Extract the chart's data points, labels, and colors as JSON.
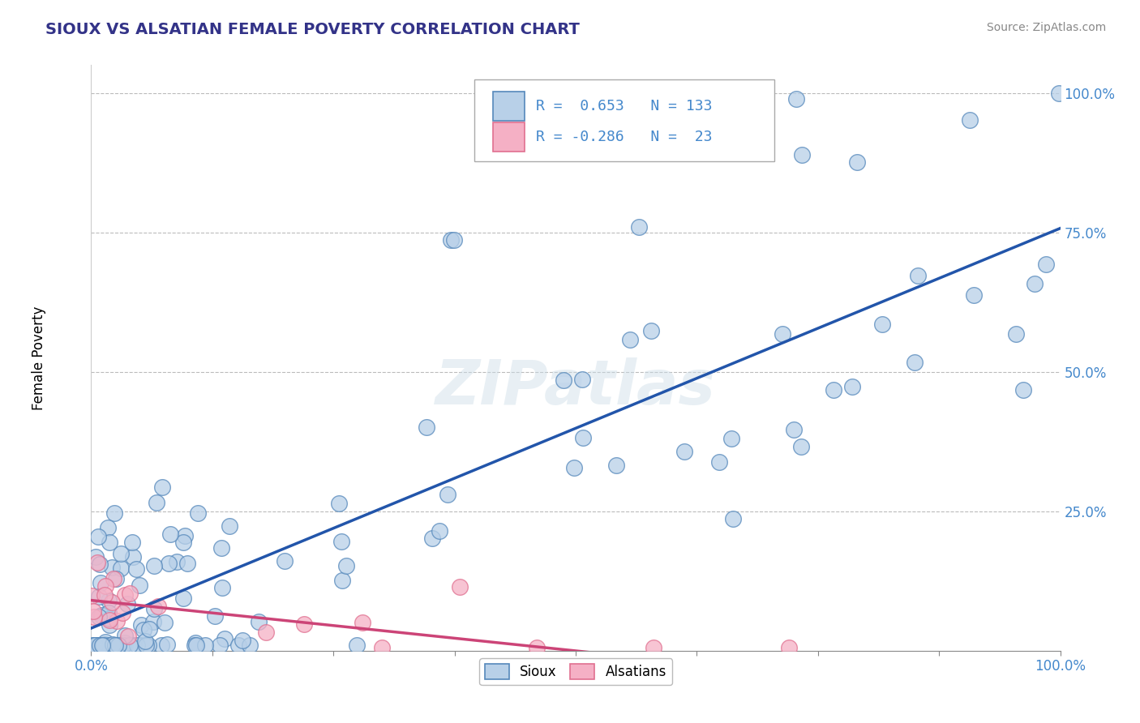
{
  "title": "SIOUX VS ALSATIAN FEMALE POVERTY CORRELATION CHART",
  "source": "Source: ZipAtlas.com",
  "ylabel": "Female Poverty",
  "xlim": [
    0.0,
    1.0
  ],
  "ylim": [
    0.0,
    1.05
  ],
  "ytick_values": [
    0.25,
    0.5,
    0.75,
    1.0
  ],
  "sioux_R": 0.653,
  "sioux_N": 133,
  "alsatian_R": -0.286,
  "alsatian_N": 23,
  "sioux_face_color": "#b8d0e8",
  "sioux_edge_color": "#5588bb",
  "alsatian_face_color": "#f5b0c5",
  "alsatian_edge_color": "#e07090",
  "sioux_line_color": "#2255aa",
  "alsatian_line_color": "#cc4477",
  "legend_label_sioux": "Sioux",
  "legend_label_alsatian": "Alsatians",
  "watermark": "ZIPatlas",
  "background_color": "#ffffff",
  "grid_color": "#bbbbbb",
  "title_color": "#333388",
  "axis_tick_color": "#4488cc",
  "source_color": "#888888",
  "legend_text_color": "#4488cc"
}
